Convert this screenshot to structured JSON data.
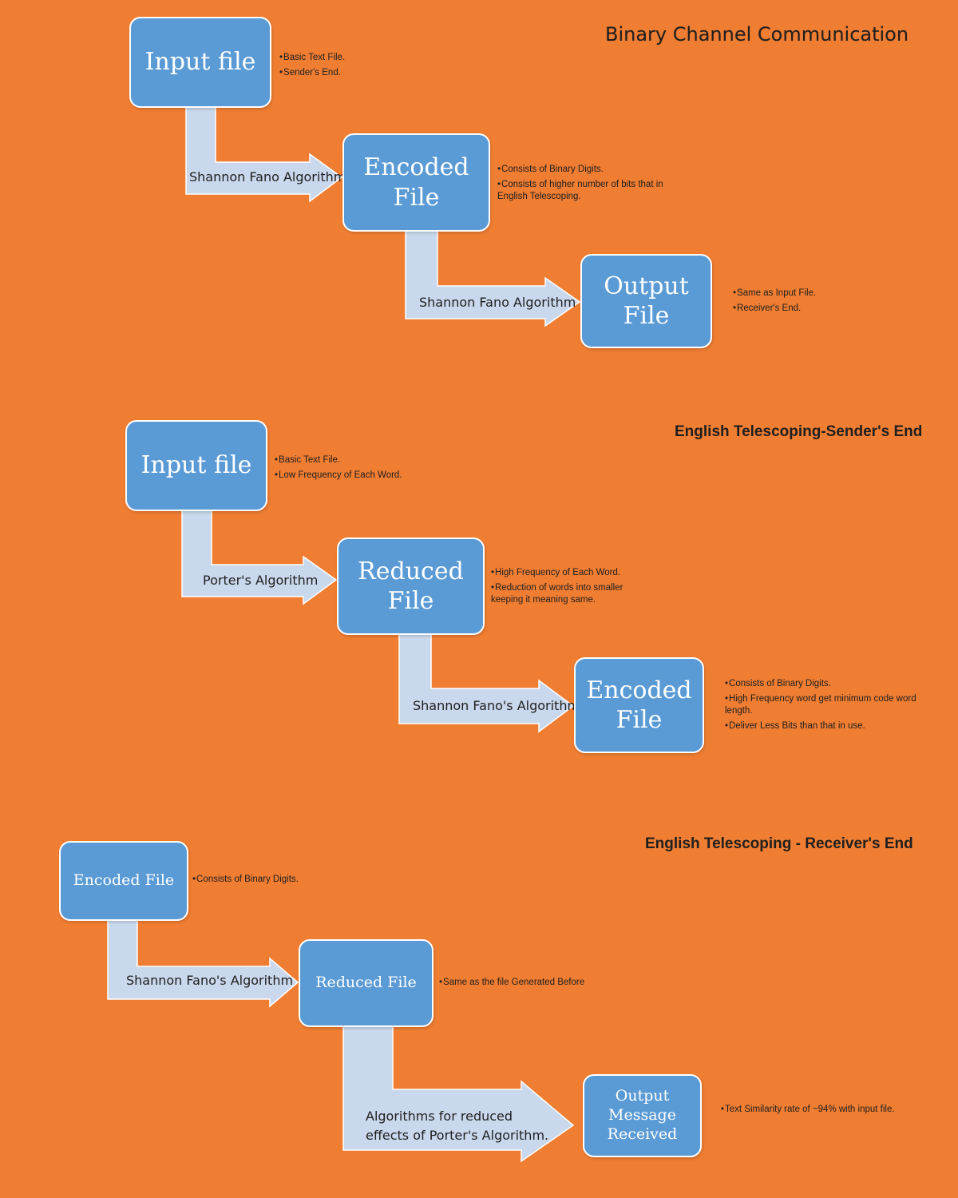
{
  "colors": {
    "background": "#ef7d32",
    "box_fill": "#5b9bd5",
    "arrow_fill": "#c9d8ec"
  },
  "section1": {
    "title": "Binary Channel Communication",
    "box1": {
      "label": "Input file",
      "notes": [
        "Basic Text File.",
        "Sender's End."
      ]
    },
    "arrow1": "Shannon Fano Algorithm",
    "box2": {
      "label": "Encoded\nFile",
      "notes": [
        "Consists of Binary Digits.",
        "Consists of higher number of bits that in English Telescoping."
      ]
    },
    "arrow2": "Shannon Fano Algorithm",
    "box3": {
      "label": "Output\nFile",
      "notes": [
        "Same as Input File.",
        "Receiver's End."
      ]
    }
  },
  "section2": {
    "title": "English Telescoping-Sender's End",
    "box1": {
      "label": "Input file",
      "notes": [
        "Basic Text File.",
        "Low Frequency of Each Word."
      ]
    },
    "arrow1": "Porter's Algorithm",
    "box2": {
      "label": "Reduced\nFile",
      "notes": [
        "High Frequency of Each Word.",
        "Reduction of words into smaller keeping it meaning same."
      ]
    },
    "arrow2": "Shannon Fano's Algorithm",
    "box3": {
      "label": "Encoded\nFile",
      "notes": [
        "Consists of Binary Digits.",
        "High Frequency word get minimum code word length.",
        "Deliver Less Bits than that in use."
      ]
    }
  },
  "section3": {
    "title": "English Telescoping - Receiver's End",
    "box1": {
      "label": "Encoded File",
      "notes": [
        "Consists of Binary Digits."
      ]
    },
    "arrow1": "Shannon Fano's Algorithm",
    "box2": {
      "label": "Reduced File",
      "notes": [
        "Same as the file Generated Before"
      ]
    },
    "arrow2": "Algorithms for reduced\neffects of Porter's Algorithm.",
    "box3": {
      "label": "Output\nMessage\nReceived",
      "notes": [
        "Text Similarity rate of ~94% with input file."
      ]
    }
  }
}
